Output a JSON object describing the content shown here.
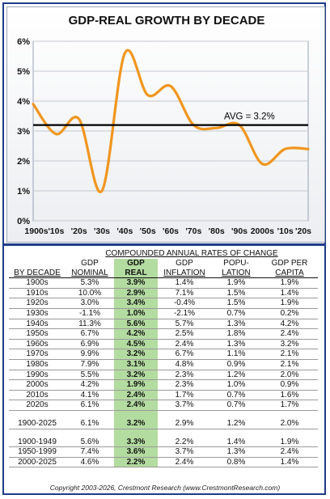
{
  "chart_data": {
    "type": "line",
    "title": "GDP-REAL GROWTH BY DECADE",
    "categories": [
      "1900s",
      "'10s",
      "'20s",
      "'30s",
      "'40s",
      "'50s",
      "'60s",
      "'70s",
      "'80s",
      "'90s",
      "2000s",
      "'10s",
      "'20s"
    ],
    "values": [
      3.9,
      2.9,
      3.4,
      1.0,
      5.6,
      4.2,
      4.5,
      3.2,
      3.1,
      3.2,
      1.9,
      2.4,
      2.4
    ],
    "ylim": [
      0,
      6
    ],
    "yticks": [
      "0%",
      "1%",
      "2%",
      "3%",
      "4%",
      "5%",
      "6%"
    ],
    "average": 3.2,
    "average_label": "AVG = 3.2%",
    "grid": true,
    "line_color": "#f0961e"
  },
  "table": {
    "super_header": "COMPOUNDED ANNUAL RATES OF CHANGE",
    "columns": [
      {
        "l1": "",
        "l2": "BY DECADE"
      },
      {
        "l1": "GDP",
        "l2": "NOMINAL"
      },
      {
        "l1": "GDP",
        "l2": "REAL"
      },
      {
        "l1": "GDP",
        "l2": "INFLATION"
      },
      {
        "l1": "POPU-",
        "l2": "LATION"
      },
      {
        "l1": "GDP PER",
        "l2": "CAPITA"
      }
    ],
    "rows": [
      [
        "1900s",
        "5.3%",
        "3.9%",
        "1.4%",
        "1.9%",
        "1.9%"
      ],
      [
        "1910s",
        "10.0%",
        "2.9%",
        "7.1%",
        "1.5%",
        "1.4%"
      ],
      [
        "1920s",
        "3.0%",
        "3.4%",
        "-0.4%",
        "1.5%",
        "1.9%"
      ],
      [
        "1930s",
        "-1.1%",
        "1.0%",
        "-2.1%",
        "0.7%",
        "0.2%"
      ],
      [
        "1940s",
        "11.3%",
        "5.6%",
        "5.7%",
        "1.3%",
        "4.2%"
      ],
      [
        "1950s",
        "6.7%",
        "4.2%",
        "2.5%",
        "1.8%",
        "2.4%"
      ],
      [
        "1960s",
        "6.9%",
        "4.5%",
        "2.4%",
        "1.3%",
        "3.2%"
      ],
      [
        "1970s",
        "9.9%",
        "3.2%",
        "6.7%",
        "1.1%",
        "2.1%"
      ],
      [
        "1980s",
        "7.9%",
        "3.1%",
        "4.8%",
        "0.9%",
        "2.1%"
      ],
      [
        "1990s",
        "5.5%",
        "3.2%",
        "2.3%",
        "1.2%",
        "2.0%"
      ],
      [
        "2000s",
        "4.2%",
        "1.9%",
        "2.3%",
        "1.0%",
        "0.9%"
      ],
      [
        "2010s",
        "4.1%",
        "2.4%",
        "1.7%",
        "0.7%",
        "1.6%"
      ],
      [
        "2020s",
        "6.1%",
        "2.4%",
        "3.7%",
        "0.7%",
        "1.7%"
      ]
    ],
    "summary": [
      [
        "1900-2025",
        "6.1%",
        "3.2%",
        "2.9%",
        "1.2%",
        "2.0%"
      ]
    ],
    "periods": [
      [
        "1900-1949",
        "5.6%",
        "3.3%",
        "2.2%",
        "1.4%",
        "1.9%"
      ],
      [
        "1950-1999",
        "7.4%",
        "3.6%",
        "3.7%",
        "1.3%",
        "2.4%"
      ],
      [
        "2000-2025",
        "4.6%",
        "2.2%",
        "2.4%",
        "0.8%",
        "1.4%"
      ]
    ]
  },
  "footer": "Copyright 2003-2026, Crestmont Research (www.CrestmontResearch.com)"
}
